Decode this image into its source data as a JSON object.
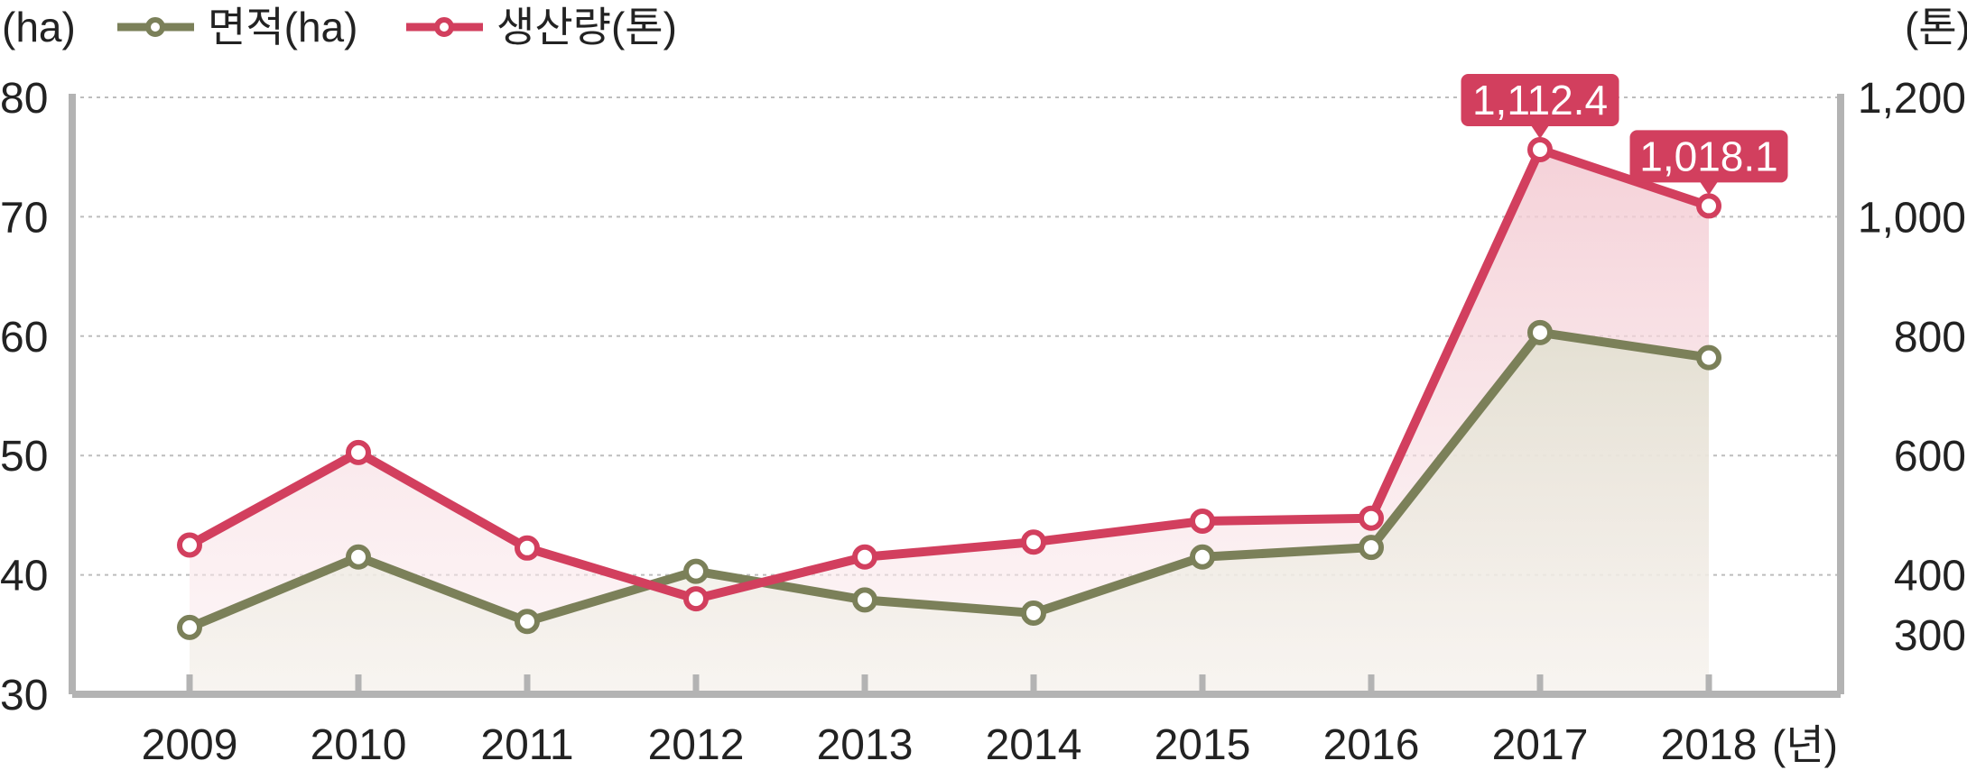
{
  "chart_data": {
    "type": "line",
    "categories": [
      "2009",
      "2010",
      "2011",
      "2012",
      "2013",
      "2014",
      "2015",
      "2016",
      "2017",
      "2018"
    ],
    "x_unit": "(년)",
    "y_left": {
      "unit": "(ha)",
      "ticks": [
        "30",
        "40",
        "50",
        "60",
        "70",
        "80"
      ],
      "range": [
        30,
        80
      ]
    },
    "y_right": {
      "unit": "(톤)",
      "ticks": [
        "300",
        "400",
        "600",
        "800",
        "1,000",
        "1,200"
      ],
      "range": [
        200,
        1200
      ]
    },
    "grid": true,
    "legend_position": "top-left",
    "series": [
      {
        "name": "면적(ha)",
        "axis": "left",
        "color": "#7b8059",
        "values": [
          35.6,
          41.5,
          36.1,
          40.3,
          37.9,
          36.8,
          41.5,
          42.3,
          60.3,
          58.2
        ]
      },
      {
        "name": "생산량(톤)",
        "axis": "right",
        "color": "#d23f5e",
        "values": [
          450,
          605,
          445,
          360,
          430,
          455,
          490,
          495,
          1112.4,
          1018.1
        ]
      }
    ],
    "annotations": [
      {
        "series": 1,
        "index": 8,
        "text": "1,112.4"
      },
      {
        "series": 1,
        "index": 9,
        "text": "1,018.1"
      }
    ]
  }
}
